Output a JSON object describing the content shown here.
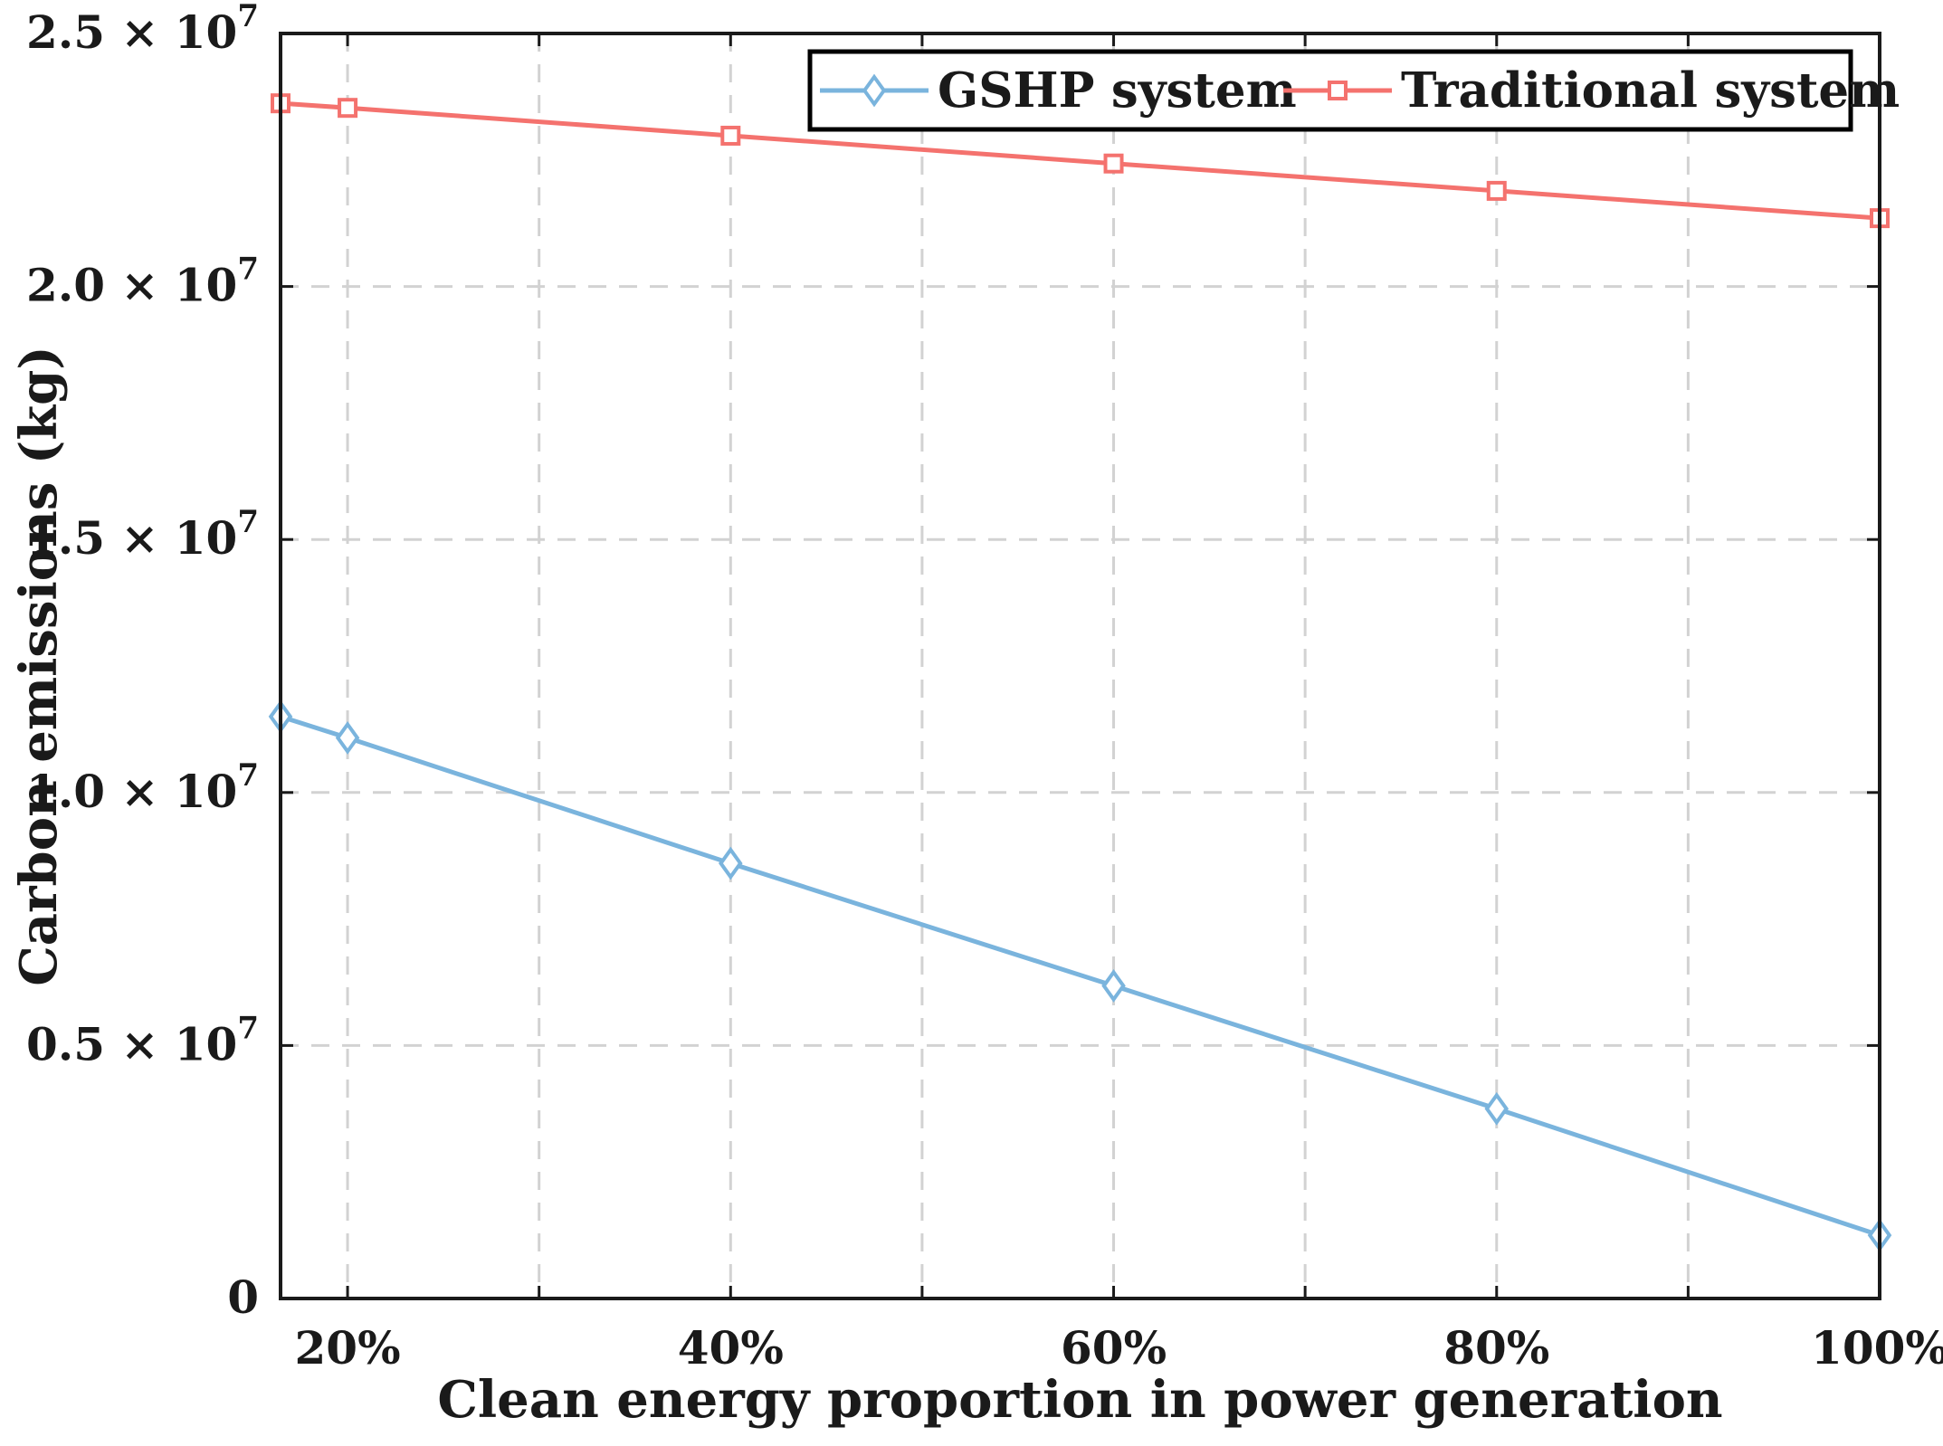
{
  "chart_data": {
    "type": "line",
    "xlabel": "Clean energy proportion in power generation",
    "ylabel": "Carbon emissions (kg)",
    "x_tick_labels": [
      "20%",
      "40%",
      "60%",
      "80%",
      "100%"
    ],
    "x_ticks": [
      20,
      40,
      60,
      80,
      100
    ],
    "xlim": [
      16.5,
      100
    ],
    "ylim": [
      0,
      25000000
    ],
    "y_ticks": [
      {
        "value": 0,
        "mantissa": "0",
        "exponent": ""
      },
      {
        "value": 5000000,
        "mantissa": "0.5 × 10",
        "exponent": "7"
      },
      {
        "value": 10000000,
        "mantissa": "1.0 × 10",
        "exponent": "7"
      },
      {
        "value": 15000000,
        "mantissa": "1.5 × 10",
        "exponent": "7"
      },
      {
        "value": 20000000,
        "mantissa": "2.0 × 10",
        "exponent": "7"
      },
      {
        "value": 25000000,
        "mantissa": "2.5 × 10",
        "exponent": "7"
      }
    ],
    "grid": true,
    "legend_position": "top-right",
    "series": [
      {
        "name": "GSHP system",
        "marker": "diamond",
        "color": "#7ab4dd",
        "x": [
          16.5,
          20,
          40,
          60,
          80,
          100
        ],
        "values": [
          11500000,
          11080000,
          8600000,
          6180000,
          3750000,
          1250000
        ]
      },
      {
        "name": "Traditional system",
        "marker": "square",
        "color": "#f4726e",
        "x": [
          16.5,
          20,
          40,
          60,
          80,
          100
        ],
        "values": [
          23620000,
          23530000,
          22980000,
          22430000,
          21890000,
          21350000
        ]
      }
    ]
  }
}
